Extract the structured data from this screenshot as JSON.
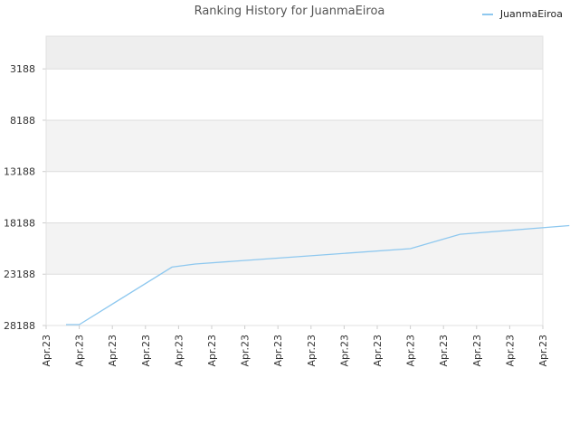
{
  "chart_data": {
    "type": "line",
    "title": "Ranking History for JuanmaEiroa",
    "xlabel": "",
    "ylabel": "",
    "y_inverted": true,
    "ylim": [
      28188,
      0
    ],
    "y_ticks": [
      3188,
      8188,
      13188,
      18188,
      23188,
      28188
    ],
    "x_tick_labels": [
      "Apr.23",
      "Apr.23",
      "Apr.23",
      "Apr.23",
      "Apr.23",
      "Apr.23",
      "Apr.23",
      "Apr.23",
      "Apr.23",
      "Apr.23",
      "Apr.23",
      "Apr.23",
      "Apr.23",
      "Apr.23",
      "Apr.23",
      "Apr.23"
    ],
    "grid": "horizontal bands",
    "legend_position": "top-right",
    "series": [
      {
        "name": "JuanmaEiroa",
        "color": "#8ec8ef",
        "x_index": [
          0.6,
          1.0,
          3.8,
          4.5,
          11.0,
          12.5,
          15.8
        ],
        "values": [
          28100,
          28100,
          22500,
          22200,
          20700,
          19300,
          18450
        ]
      }
    ]
  },
  "colors": {
    "band_dark": "#eeeeee",
    "band_light": "#f3f3f3",
    "band_white": "#ffffff",
    "grid": "#dddddd",
    "axis_text": "#333333"
  }
}
